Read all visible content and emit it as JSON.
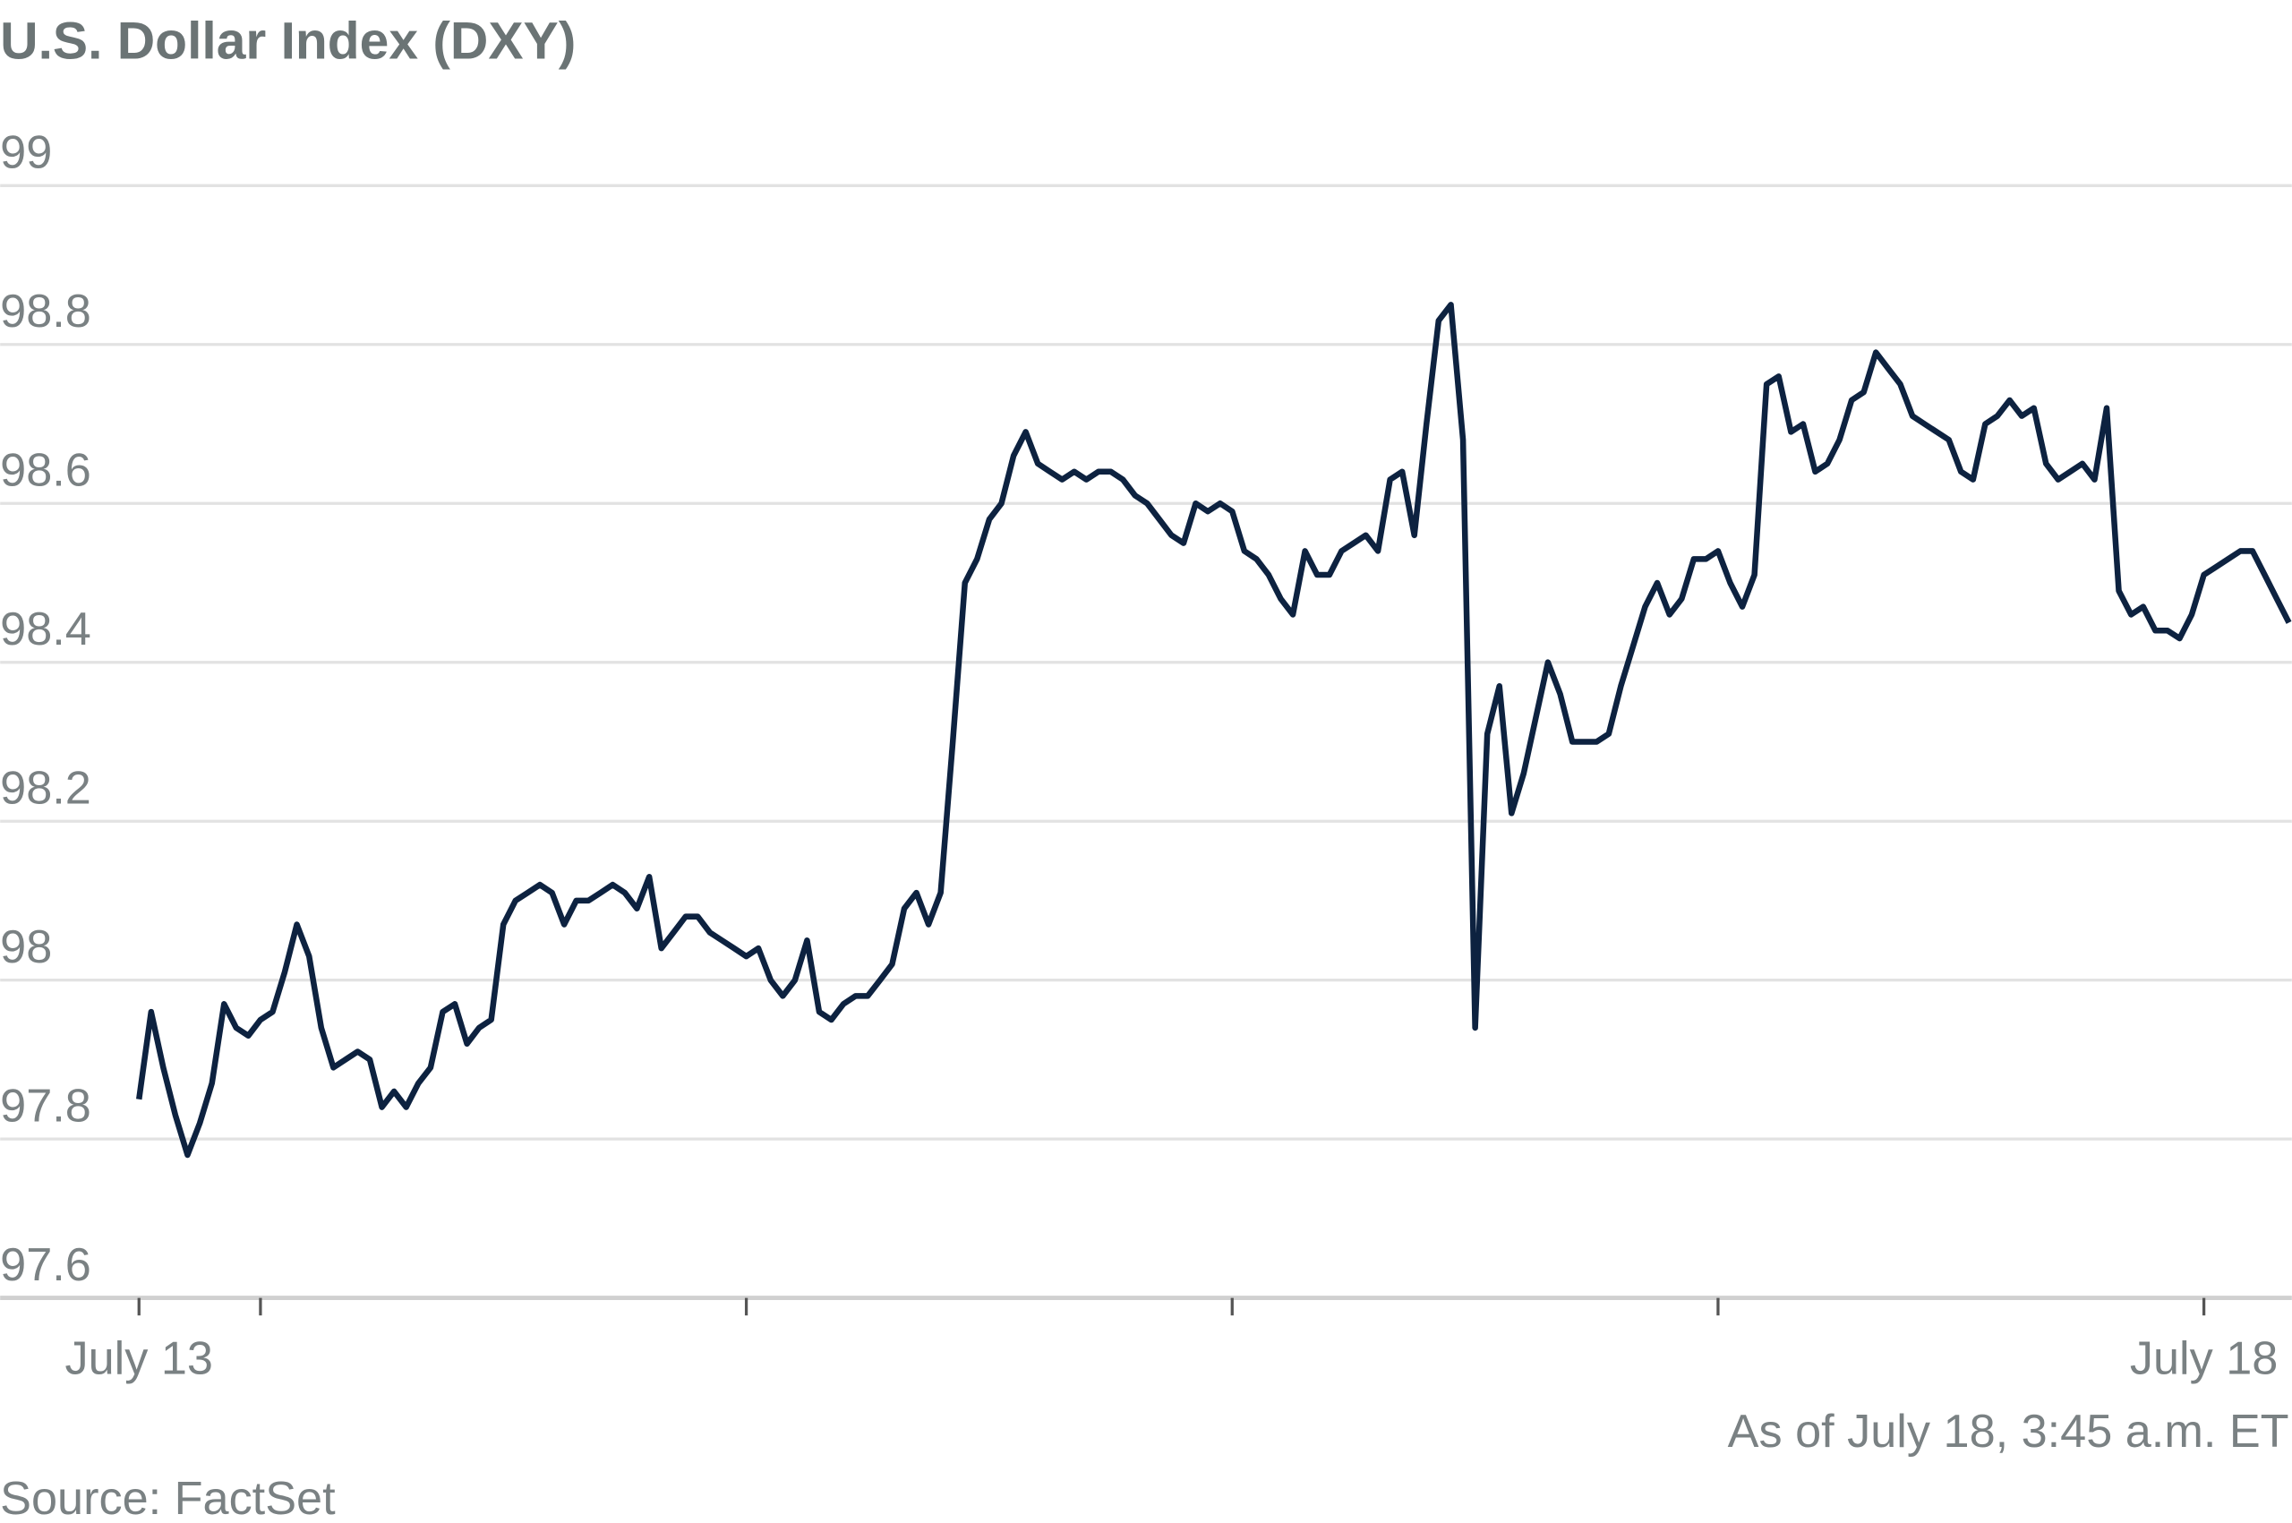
{
  "chart_data": {
    "type": "line",
    "title": "U.S. Dollar Index (DXY)",
    "note": "As of July 18, 3:45 a.m. ET",
    "source": "Source: FactSet",
    "color": "#0d2240",
    "grid": true,
    "ylim": [
      97.6,
      99.0
    ],
    "yticks": [
      97.6,
      97.8,
      98.0,
      98.2,
      98.4,
      98.6,
      98.8,
      99.0
    ],
    "xlim": [
      0,
      177
    ],
    "xticks": [
      {
        "value": 0,
        "label": "July 13"
      },
      10,
      50,
      90,
      130,
      {
        "value": 170,
        "label": "July 18"
      }
    ],
    "values": [
      97.85,
      97.96,
      97.89,
      97.83,
      97.78,
      97.82,
      97.87,
      97.97,
      97.94,
      97.93,
      97.95,
      97.96,
      98.01,
      98.07,
      98.03,
      97.94,
      97.89,
      97.9,
      97.91,
      97.9,
      97.84,
      97.86,
      97.84,
      97.87,
      97.89,
      97.96,
      97.97,
      97.92,
      97.94,
      97.95,
      98.07,
      98.1,
      98.11,
      98.12,
      98.11,
      98.07,
      98.1,
      98.1,
      98.11,
      98.12,
      98.11,
      98.09,
      98.13,
      98.04,
      98.06,
      98.08,
      98.08,
      98.06,
      98.05,
      98.04,
      98.03,
      98.04,
      98.0,
      97.98,
      98.0,
      98.05,
      97.96,
      97.95,
      97.97,
      97.98,
      97.98,
      98.0,
      98.02,
      98.09,
      98.11,
      98.07,
      98.11,
      98.3,
      98.5,
      98.53,
      98.58,
      98.6,
      98.66,
      98.69,
      98.65,
      98.64,
      98.63,
      98.64,
      98.63,
      98.64,
      98.64,
      98.63,
      98.61,
      98.6,
      98.58,
      98.56,
      98.55,
      98.6,
      98.59,
      98.6,
      98.59,
      98.54,
      98.53,
      98.51,
      98.48,
      98.46,
      98.54,
      98.51,
      98.51,
      98.54,
      98.55,
      98.56,
      98.54,
      98.63,
      98.64,
      98.56,
      98.7,
      98.83,
      98.85,
      98.68,
      97.94,
      98.31,
      98.37,
      98.21,
      98.26,
      98.33,
      98.4,
      98.36,
      98.3,
      98.3,
      98.3,
      98.31,
      98.37,
      98.42,
      98.47,
      98.5,
      98.46,
      98.48,
      98.53,
      98.53,
      98.54,
      98.5,
      98.47,
      98.51,
      98.75,
      98.76,
      98.69,
      98.7,
      98.64,
      98.65,
      98.68,
      98.73,
      98.74,
      98.79,
      98.77,
      98.75,
      98.71,
      98.7,
      98.69,
      98.68,
      98.64,
      98.63,
      98.7,
      98.71,
      98.73,
      98.71,
      98.72,
      98.65,
      98.63,
      98.64,
      98.65,
      98.63,
      98.72,
      98.49,
      98.46,
      98.47,
      98.44,
      98.44,
      98.43,
      98.46,
      98.51,
      98.52,
      98.53,
      98.54,
      98.54,
      98.51,
      98.48,
      98.45
    ]
  }
}
